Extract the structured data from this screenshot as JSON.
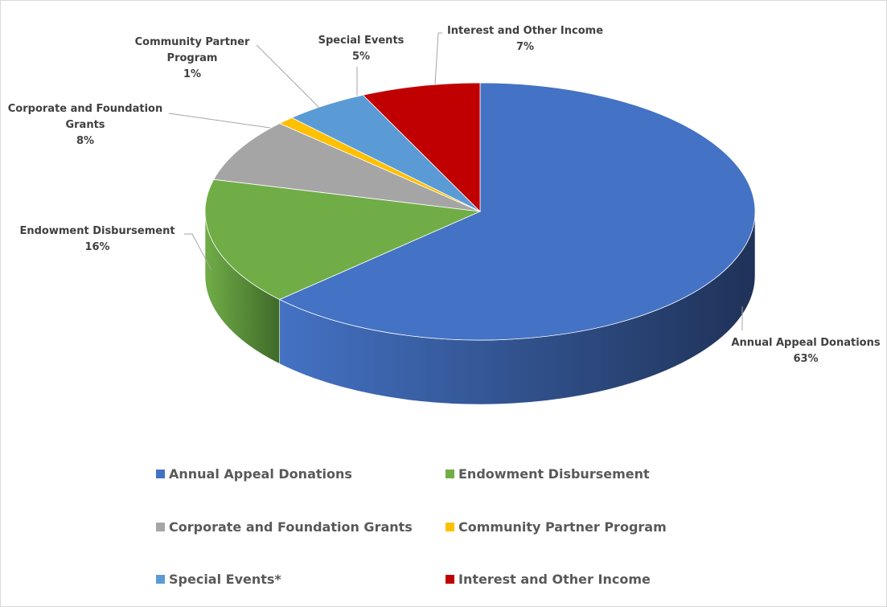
{
  "chart_data": {
    "type": "pie",
    "title": "",
    "categories": [
      "Annual Appeal Donations",
      "Endowment Disbursement",
      "Corporate and Foundation Grants",
      "Community Partner Program",
      "Special Events",
      "Interest and Other Income"
    ],
    "values": [
      63,
      16,
      8,
      1,
      5,
      7
    ],
    "value_labels": [
      "63%",
      "16%",
      "8%",
      "1%",
      "5%",
      "7%"
    ],
    "slice_label_lines": [
      [
        "Annual Appeal Donations"
      ],
      [
        "Endowment Disbursement"
      ],
      [
        "Corporate and Foundation",
        "Grants"
      ],
      [
        "Community Partner",
        "Program"
      ],
      [
        "Special Events"
      ],
      [
        "Interest and Other Income"
      ]
    ],
    "legend_labels": [
      "Annual Appeal Donations",
      "Endowment Disbursement",
      "Corporate and Foundation Grants",
      "Community Partner Program",
      "Special Events*",
      "Interest and Other Income"
    ],
    "colors": [
      "#4472c4",
      "#70ad47",
      "#a5a5a5",
      "#ffc000",
      "#5b9bd5",
      "#c00000"
    ],
    "dark_colors": [
      "#1f3258",
      "#3f6a2a",
      "#6a6a6a",
      "#a07800",
      "#2f5f8e",
      "#7a0000"
    ],
    "style": "3d-pie",
    "legend_position": "bottom"
  }
}
